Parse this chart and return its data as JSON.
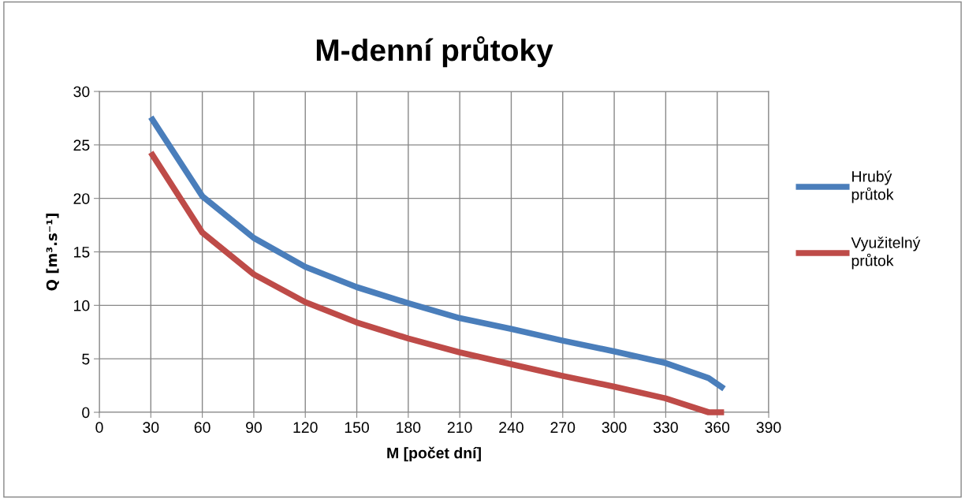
{
  "chart_data": {
    "type": "line",
    "title": "M-denní průtoky",
    "xlabel": "M [počet dní]",
    "ylabel": "Q [m³.s⁻¹]",
    "xlim": [
      0,
      390
    ],
    "xticks": [
      0,
      30,
      60,
      90,
      120,
      150,
      180,
      210,
      240,
      270,
      300,
      330,
      360,
      390
    ],
    "ylim": [
      0,
      30
    ],
    "yticks": [
      0,
      5,
      10,
      15,
      20,
      25,
      30
    ],
    "grid": true,
    "legend": "right",
    "marker": "none",
    "line_style": "solid",
    "series": [
      {
        "name": "Hrubý průtok",
        "color": "#4a7ebb",
        "x": [
          30,
          60,
          90,
          120,
          150,
          180,
          210,
          240,
          270,
          300,
          330,
          355,
          364
        ],
        "values": [
          27.6,
          20.2,
          16.3,
          13.6,
          11.7,
          10.2,
          8.8,
          7.8,
          6.7,
          5.7,
          4.6,
          3.2,
          2.2
        ]
      },
      {
        "name": "Využitelný průtok",
        "color": "#be4b48",
        "x": [
          30,
          60,
          90,
          120,
          150,
          180,
          210,
          240,
          270,
          300,
          330,
          355,
          364
        ],
        "values": [
          24.3,
          16.8,
          12.9,
          10.3,
          8.4,
          6.9,
          5.6,
          4.5,
          3.4,
          2.4,
          1.3,
          0,
          0
        ]
      }
    ]
  }
}
